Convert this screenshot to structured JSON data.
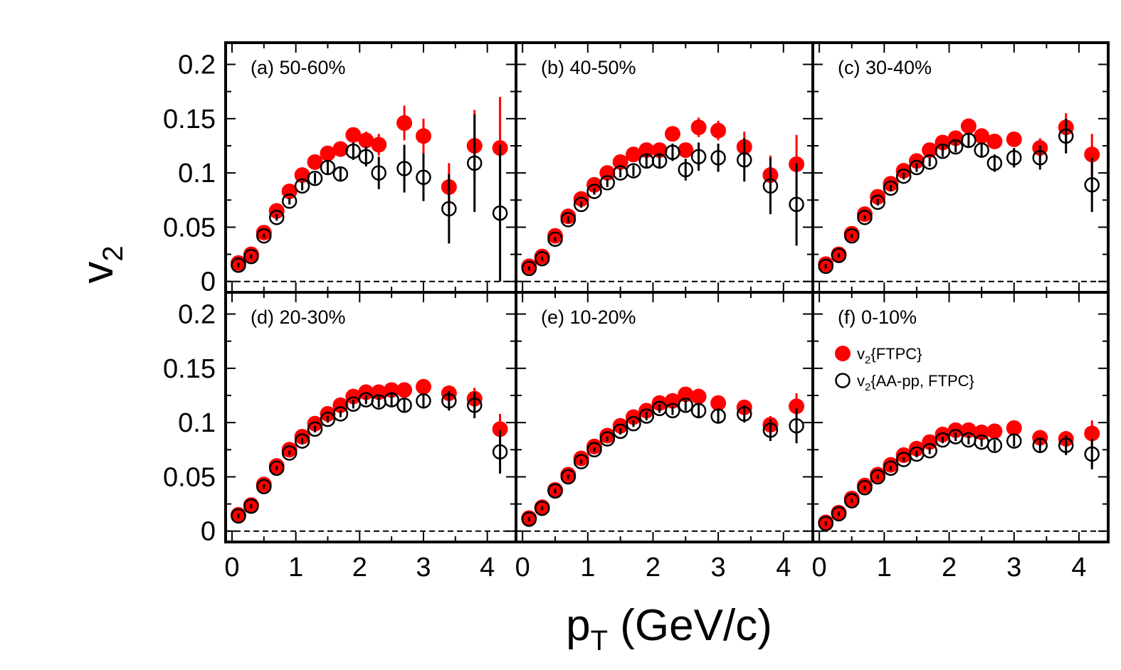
{
  "chart_data": {
    "type": "scatter",
    "layout": "2x3 panels, shared axes",
    "xlabel": {
      "main": "p",
      "sub": "T",
      "rest": " (GeV/c)"
    },
    "ylabel": {
      "main": "v",
      "sub": "2"
    },
    "xlim": [
      -0.1,
      4.45
    ],
    "ylim": [
      -0.01,
      0.22
    ],
    "x_ticks": [
      "0",
      "1",
      "2",
      "3",
      "4"
    ],
    "y_ticks": [
      "0",
      "0.05",
      "0.1",
      "0.15",
      "0.2"
    ],
    "y_tick_values": [
      0,
      0.05,
      0.1,
      0.15,
      0.2
    ],
    "reference_line": {
      "y": 0,
      "style": "dashed"
    },
    "colors": {
      "ftpc": "#ff0000",
      "aapp": "#000000",
      "errbar_ftpc": "#ff0000",
      "errbar_aapp": "#000000"
    },
    "legend": {
      "panel": 5,
      "entries": [
        {
          "main": "v",
          "sub": "2",
          "rest": "{FTPC}",
          "marker": "filled-red-circle"
        },
        {
          "main": "v",
          "sub": "2",
          "rest": "{AA-pp, FTPC}",
          "marker": "open-black-circle"
        }
      ]
    },
    "x": [
      0.1,
      0.3,
      0.5,
      0.7,
      0.9,
      1.1,
      1.3,
      1.5,
      1.7,
      1.9,
      2.1,
      2.3,
      2.5,
      2.7,
      3.0,
      3.4,
      3.8,
      4.2
    ],
    "panels": [
      {
        "label": "(a) 50-60%",
        "ftpc": [
          [
            0.1,
            0.017,
            0.002
          ],
          [
            0.3,
            0.025,
            0.002
          ],
          [
            0.5,
            0.045,
            0.002
          ],
          [
            0.7,
            0.065,
            0.003
          ],
          [
            0.9,
            0.083,
            0.003
          ],
          [
            1.1,
            0.098,
            0.003
          ],
          [
            1.3,
            0.11,
            0.004
          ],
          [
            1.5,
            0.118,
            0.004
          ],
          [
            1.7,
            0.122,
            0.005
          ],
          [
            1.9,
            0.135,
            0.005
          ],
          [
            2.1,
            0.13,
            0.008
          ],
          [
            2.3,
            0.126,
            0.01
          ],
          [
            2.7,
            0.146,
            0.016
          ],
          [
            3.0,
            0.134,
            0.016
          ],
          [
            3.4,
            0.087,
            0.022
          ],
          [
            3.8,
            0.125,
            0.033
          ],
          [
            4.2,
            0.123,
            0.047
          ]
        ],
        "aapp": [
          [
            0.1,
            0.015,
            0.002
          ],
          [
            0.3,
            0.023,
            0.002
          ],
          [
            0.5,
            0.042,
            0.002
          ],
          [
            0.7,
            0.059,
            0.003
          ],
          [
            0.9,
            0.074,
            0.003
          ],
          [
            1.1,
            0.088,
            0.004
          ],
          [
            1.3,
            0.095,
            0.005
          ],
          [
            1.5,
            0.105,
            0.006
          ],
          [
            1.7,
            0.099,
            0.007
          ],
          [
            1.9,
            0.12,
            0.008
          ],
          [
            2.1,
            0.115,
            0.009
          ],
          [
            2.3,
            0.1,
            0.015
          ],
          [
            2.7,
            0.104,
            0.022
          ],
          [
            3.0,
            0.096,
            0.022
          ],
          [
            3.4,
            0.067,
            0.032
          ],
          [
            3.8,
            0.109,
            0.045
          ],
          [
            4.2,
            0.063,
            0.063
          ]
        ]
      },
      {
        "label": "(b) 40-50%",
        "ftpc": [
          [
            0.1,
            0.014,
            0.002
          ],
          [
            0.3,
            0.023,
            0.002
          ],
          [
            0.5,
            0.042,
            0.002
          ],
          [
            0.7,
            0.06,
            0.003
          ],
          [
            0.9,
            0.076,
            0.003
          ],
          [
            1.1,
            0.089,
            0.003
          ],
          [
            1.3,
            0.1,
            0.003
          ],
          [
            1.5,
            0.11,
            0.004
          ],
          [
            1.7,
            0.117,
            0.004
          ],
          [
            1.9,
            0.121,
            0.005
          ],
          [
            2.1,
            0.121,
            0.005
          ],
          [
            2.3,
            0.136,
            0.006
          ],
          [
            2.5,
            0.121,
            0.007
          ],
          [
            2.7,
            0.142,
            0.009
          ],
          [
            3.0,
            0.139,
            0.009
          ],
          [
            3.4,
            0.124,
            0.014
          ],
          [
            3.8,
            0.098,
            0.018
          ],
          [
            4.2,
            0.108,
            0.027
          ]
        ],
        "aapp": [
          [
            0.1,
            0.012,
            0.002
          ],
          [
            0.3,
            0.021,
            0.002
          ],
          [
            0.5,
            0.039,
            0.002
          ],
          [
            0.7,
            0.057,
            0.003
          ],
          [
            0.9,
            0.071,
            0.003
          ],
          [
            1.1,
            0.083,
            0.003
          ],
          [
            1.3,
            0.091,
            0.004
          ],
          [
            1.5,
            0.1,
            0.004
          ],
          [
            1.7,
            0.102,
            0.005
          ],
          [
            1.9,
            0.111,
            0.006
          ],
          [
            2.1,
            0.111,
            0.007
          ],
          [
            2.3,
            0.119,
            0.008
          ],
          [
            2.5,
            0.103,
            0.01
          ],
          [
            2.7,
            0.115,
            0.013
          ],
          [
            3.0,
            0.114,
            0.013
          ],
          [
            3.4,
            0.112,
            0.02
          ],
          [
            3.8,
            0.088,
            0.026
          ],
          [
            4.2,
            0.071,
            0.038
          ]
        ]
      },
      {
        "label": "(c) 30-40%",
        "ftpc": [
          [
            0.1,
            0.016,
            0.002
          ],
          [
            0.3,
            0.025,
            0.002
          ],
          [
            0.5,
            0.044,
            0.002
          ],
          [
            0.7,
            0.062,
            0.002
          ],
          [
            0.9,
            0.078,
            0.003
          ],
          [
            1.1,
            0.09,
            0.003
          ],
          [
            1.3,
            0.102,
            0.003
          ],
          [
            1.5,
            0.111,
            0.003
          ],
          [
            1.7,
            0.121,
            0.004
          ],
          [
            1.9,
            0.128,
            0.004
          ],
          [
            2.1,
            0.132,
            0.004
          ],
          [
            2.3,
            0.143,
            0.005
          ],
          [
            2.5,
            0.134,
            0.006
          ],
          [
            2.7,
            0.129,
            0.007
          ],
          [
            3.0,
            0.131,
            0.007
          ],
          [
            3.4,
            0.123,
            0.009
          ],
          [
            3.8,
            0.142,
            0.013
          ],
          [
            4.2,
            0.117,
            0.019
          ]
        ],
        "aapp": [
          [
            0.1,
            0.014,
            0.002
          ],
          [
            0.3,
            0.024,
            0.002
          ],
          [
            0.5,
            0.042,
            0.002
          ],
          [
            0.7,
            0.059,
            0.002
          ],
          [
            0.9,
            0.073,
            0.003
          ],
          [
            1.1,
            0.086,
            0.003
          ],
          [
            1.3,
            0.097,
            0.003
          ],
          [
            1.5,
            0.105,
            0.004
          ],
          [
            1.7,
            0.11,
            0.004
          ],
          [
            1.9,
            0.12,
            0.005
          ],
          [
            2.1,
            0.124,
            0.005
          ],
          [
            2.3,
            0.13,
            0.006
          ],
          [
            2.5,
            0.121,
            0.007
          ],
          [
            2.7,
            0.109,
            0.008
          ],
          [
            3.0,
            0.114,
            0.009
          ],
          [
            3.4,
            0.114,
            0.011
          ],
          [
            3.8,
            0.134,
            0.016
          ],
          [
            4.2,
            0.089,
            0.025
          ]
        ]
      },
      {
        "label": "(d) 20-30%",
        "ftpc": [
          [
            0.1,
            0.015,
            0.002
          ],
          [
            0.3,
            0.024,
            0.002
          ],
          [
            0.5,
            0.043,
            0.002
          ],
          [
            0.7,
            0.06,
            0.002
          ],
          [
            0.9,
            0.075,
            0.002
          ],
          [
            1.1,
            0.087,
            0.003
          ],
          [
            1.3,
            0.099,
            0.003
          ],
          [
            1.5,
            0.108,
            0.003
          ],
          [
            1.7,
            0.116,
            0.003
          ],
          [
            1.9,
            0.124,
            0.004
          ],
          [
            2.1,
            0.128,
            0.004
          ],
          [
            2.3,
            0.128,
            0.004
          ],
          [
            2.5,
            0.13,
            0.005
          ],
          [
            2.7,
            0.13,
            0.005
          ],
          [
            3.0,
            0.133,
            0.006
          ],
          [
            3.4,
            0.127,
            0.007
          ],
          [
            3.8,
            0.122,
            0.01
          ],
          [
            4.2,
            0.094,
            0.014
          ]
        ],
        "aapp": [
          [
            0.1,
            0.014,
            0.002
          ],
          [
            0.3,
            0.023,
            0.002
          ],
          [
            0.5,
            0.041,
            0.002
          ],
          [
            0.7,
            0.058,
            0.002
          ],
          [
            0.9,
            0.072,
            0.002
          ],
          [
            1.1,
            0.083,
            0.003
          ],
          [
            1.3,
            0.094,
            0.003
          ],
          [
            1.5,
            0.103,
            0.003
          ],
          [
            1.7,
            0.108,
            0.003
          ],
          [
            1.9,
            0.117,
            0.004
          ],
          [
            2.1,
            0.121,
            0.004
          ],
          [
            2.3,
            0.119,
            0.005
          ],
          [
            2.5,
            0.121,
            0.006
          ],
          [
            2.7,
            0.116,
            0.006
          ],
          [
            3.0,
            0.12,
            0.007
          ],
          [
            3.4,
            0.12,
            0.009
          ],
          [
            3.8,
            0.116,
            0.012
          ],
          [
            4.2,
            0.073,
            0.02
          ]
        ]
      },
      {
        "label": "(e) 10-20%",
        "ftpc": [
          [
            0.1,
            0.012,
            0.002
          ],
          [
            0.3,
            0.022,
            0.002
          ],
          [
            0.5,
            0.038,
            0.002
          ],
          [
            0.7,
            0.052,
            0.002
          ],
          [
            0.9,
            0.067,
            0.002
          ],
          [
            1.1,
            0.078,
            0.002
          ],
          [
            1.3,
            0.088,
            0.002
          ],
          [
            1.5,
            0.097,
            0.003
          ],
          [
            1.7,
            0.105,
            0.003
          ],
          [
            1.9,
            0.111,
            0.003
          ],
          [
            2.1,
            0.118,
            0.003
          ],
          [
            2.3,
            0.12,
            0.004
          ],
          [
            2.5,
            0.126,
            0.004
          ],
          [
            2.7,
            0.124,
            0.005
          ],
          [
            3.0,
            0.118,
            0.005
          ],
          [
            3.4,
            0.114,
            0.006
          ],
          [
            3.8,
            0.098,
            0.008
          ],
          [
            4.2,
            0.115,
            0.012
          ]
        ],
        "aapp": [
          [
            0.1,
            0.011,
            0.002
          ],
          [
            0.3,
            0.021,
            0.002
          ],
          [
            0.5,
            0.037,
            0.002
          ],
          [
            0.7,
            0.05,
            0.002
          ],
          [
            0.9,
            0.064,
            0.002
          ],
          [
            1.1,
            0.075,
            0.002
          ],
          [
            1.3,
            0.085,
            0.002
          ],
          [
            1.5,
            0.092,
            0.003
          ],
          [
            1.7,
            0.099,
            0.003
          ],
          [
            1.9,
            0.106,
            0.004
          ],
          [
            2.1,
            0.113,
            0.004
          ],
          [
            2.3,
            0.111,
            0.004
          ],
          [
            2.5,
            0.116,
            0.005
          ],
          [
            2.7,
            0.111,
            0.006
          ],
          [
            3.0,
            0.106,
            0.006
          ],
          [
            3.4,
            0.108,
            0.008
          ],
          [
            3.8,
            0.093,
            0.01
          ],
          [
            4.2,
            0.097,
            0.016
          ]
        ]
      },
      {
        "label": "(f) 0-10%",
        "ftpc": [
          [
            0.1,
            0.008,
            0.002
          ],
          [
            0.3,
            0.017,
            0.002
          ],
          [
            0.5,
            0.03,
            0.002
          ],
          [
            0.7,
            0.042,
            0.002
          ],
          [
            0.9,
            0.052,
            0.002
          ],
          [
            1.1,
            0.061,
            0.002
          ],
          [
            1.3,
            0.07,
            0.002
          ],
          [
            1.5,
            0.076,
            0.002
          ],
          [
            1.7,
            0.082,
            0.003
          ],
          [
            1.9,
            0.089,
            0.003
          ],
          [
            2.1,
            0.093,
            0.003
          ],
          [
            2.3,
            0.093,
            0.003
          ],
          [
            2.5,
            0.091,
            0.004
          ],
          [
            2.7,
            0.092,
            0.004
          ],
          [
            3.0,
            0.095,
            0.004
          ],
          [
            3.4,
            0.086,
            0.005
          ],
          [
            3.8,
            0.085,
            0.007
          ],
          [
            4.2,
            0.09,
            0.012
          ]
        ],
        "aapp": [
          [
            0.1,
            0.007,
            0.002
          ],
          [
            0.3,
            0.016,
            0.002
          ],
          [
            0.5,
            0.028,
            0.002
          ],
          [
            0.7,
            0.04,
            0.002
          ],
          [
            0.9,
            0.05,
            0.002
          ],
          [
            1.1,
            0.058,
            0.002
          ],
          [
            1.3,
            0.066,
            0.002
          ],
          [
            1.5,
            0.071,
            0.003
          ],
          [
            1.7,
            0.074,
            0.003
          ],
          [
            1.9,
            0.084,
            0.003
          ],
          [
            2.1,
            0.087,
            0.004
          ],
          [
            2.3,
            0.084,
            0.004
          ],
          [
            2.5,
            0.082,
            0.004
          ],
          [
            2.7,
            0.079,
            0.005
          ],
          [
            3.0,
            0.083,
            0.005
          ],
          [
            3.4,
            0.079,
            0.007
          ],
          [
            3.8,
            0.079,
            0.009
          ],
          [
            4.2,
            0.071,
            0.014
          ]
        ]
      }
    ]
  }
}
